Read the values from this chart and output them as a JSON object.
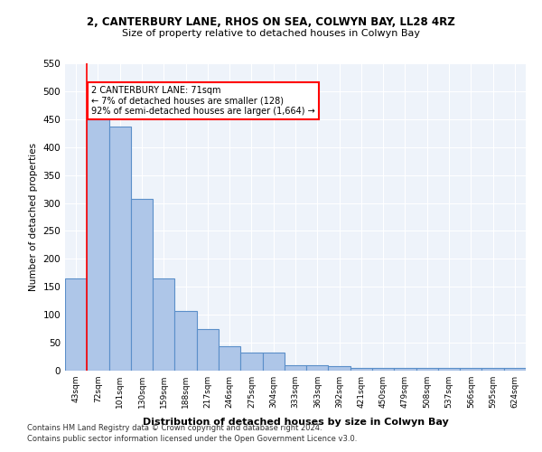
{
  "title1": "2, CANTERBURY LANE, RHOS ON SEA, COLWYN BAY, LL28 4RZ",
  "title2": "Size of property relative to detached houses in Colwyn Bay",
  "xlabel": "Distribution of detached houses by size in Colwyn Bay",
  "ylabel": "Number of detached properties",
  "categories": [
    "43sqm",
    "72sqm",
    "101sqm",
    "130sqm",
    "159sqm",
    "188sqm",
    "217sqm",
    "246sqm",
    "275sqm",
    "304sqm",
    "333sqm",
    "363sqm",
    "392sqm",
    "421sqm",
    "450sqm",
    "479sqm",
    "508sqm",
    "537sqm",
    "566sqm",
    "595sqm",
    "624sqm"
  ],
  "values": [
    165,
    450,
    437,
    307,
    165,
    106,
    74,
    44,
    33,
    33,
    10,
    10,
    8,
    5,
    5,
    5,
    5,
    5,
    5,
    5,
    5
  ],
  "bar_color": "#aec6e8",
  "bar_edge_color": "#5b8fc9",
  "red_line_x": 0.5,
  "annotation_text": "2 CANTERBURY LANE: 71sqm\n← 7% of detached houses are smaller (128)\n92% of semi-detached houses are larger (1,664) →",
  "footer1": "Contains HM Land Registry data © Crown copyright and database right 2024.",
  "footer2": "Contains public sector information licensed under the Open Government Licence v3.0.",
  "ylim": [
    0,
    550
  ],
  "bg_color": "#eef3fa",
  "plot_bg_color": "#eef3fa"
}
